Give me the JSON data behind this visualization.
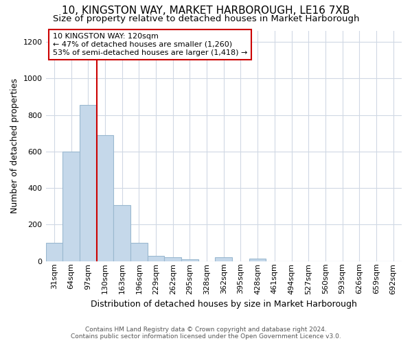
{
  "title": "10, KINGSTON WAY, MARKET HARBOROUGH, LE16 7XB",
  "subtitle": "Size of property relative to detached houses in Market Harborough",
  "xlabel": "Distribution of detached houses by size in Market Harborough",
  "ylabel": "Number of detached properties",
  "categories": [
    "31sqm",
    "64sqm",
    "97sqm",
    "130sqm",
    "163sqm",
    "196sqm",
    "229sqm",
    "262sqm",
    "295sqm",
    "328sqm",
    "362sqm",
    "395sqm",
    "428sqm",
    "461sqm",
    "494sqm",
    "527sqm",
    "560sqm",
    "593sqm",
    "626sqm",
    "659sqm",
    "692sqm"
  ],
  "values": [
    100,
    600,
    855,
    690,
    305,
    100,
    30,
    20,
    10,
    0,
    20,
    0,
    15,
    0,
    0,
    0,
    0,
    0,
    0,
    0,
    0
  ],
  "bar_color": "#c5d8ea",
  "bar_edge_color": "#9ab8d0",
  "ylim_max": 1260,
  "yticks": [
    0,
    200,
    400,
    600,
    800,
    1000,
    1200
  ],
  "vline_color": "#cc0000",
  "vline_pos": 2.5,
  "annotation_text": "10 KINGSTON WAY: 120sqm\n← 47% of detached houses are smaller (1,260)\n53% of semi-detached houses are larger (1,418) →",
  "footer_line1": "Contains HM Land Registry data © Crown copyright and database right 2024.",
  "footer_line2": "Contains public sector information licensed under the Open Government Licence v3.0.",
  "title_fontsize": 11,
  "subtitle_fontsize": 9.5,
  "ylabel_fontsize": 9,
  "xlabel_fontsize": 9,
  "tick_fontsize": 8,
  "annot_fontsize": 8,
  "footer_fontsize": 6.5,
  "bg_color": "#ffffff",
  "grid_color": "#d0d8e4"
}
